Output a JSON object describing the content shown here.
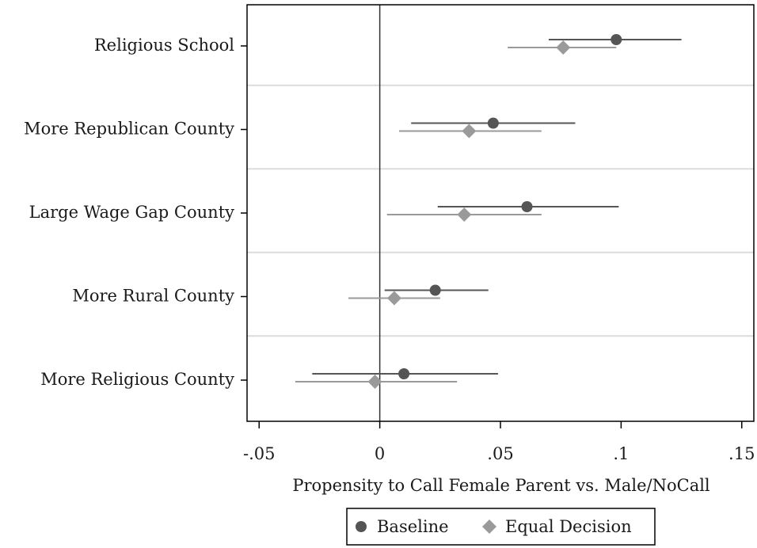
{
  "chart_data": {
    "type": "scatter",
    "subtype": "coefficient-plot",
    "orientation": "horizontal",
    "categories": [
      "Religious School",
      "More Republican County",
      "Large Wage Gap County",
      "More Rural County",
      "More Religious County"
    ],
    "series": [
      {
        "name": "Baseline",
        "marker": "circle",
        "color": "#555555",
        "estimates": [
          0.098,
          0.047,
          0.061,
          0.023,
          0.01
        ],
        "ci_low": [
          0.07,
          0.013,
          0.024,
          0.002,
          -0.028
        ],
        "ci_high": [
          0.125,
          0.081,
          0.099,
          0.045,
          0.049
        ]
      },
      {
        "name": "Equal Decision",
        "marker": "diamond",
        "color": "#9a9a9a",
        "estimates": [
          0.076,
          0.037,
          0.035,
          0.006,
          -0.002
        ],
        "ci_low": [
          0.053,
          0.008,
          0.003,
          -0.013,
          -0.035
        ],
        "ci_high": [
          0.098,
          0.067,
          0.067,
          0.025,
          0.032
        ]
      }
    ],
    "x_ticks": [
      -0.05,
      0,
      0.05,
      0.1,
      0.15
    ],
    "x_tick_labels": [
      "-.05",
      "0",
      ".05",
      ".1",
      ".15"
    ],
    "xlim": [
      -0.055,
      0.155
    ],
    "reference_line_x": 0,
    "xlabel": "Propensity to Call Female Parent vs. Male/NoCall",
    "ylabel": "",
    "title": "",
    "grid": "horizontal separators between categories",
    "legend_position": "bottom"
  }
}
